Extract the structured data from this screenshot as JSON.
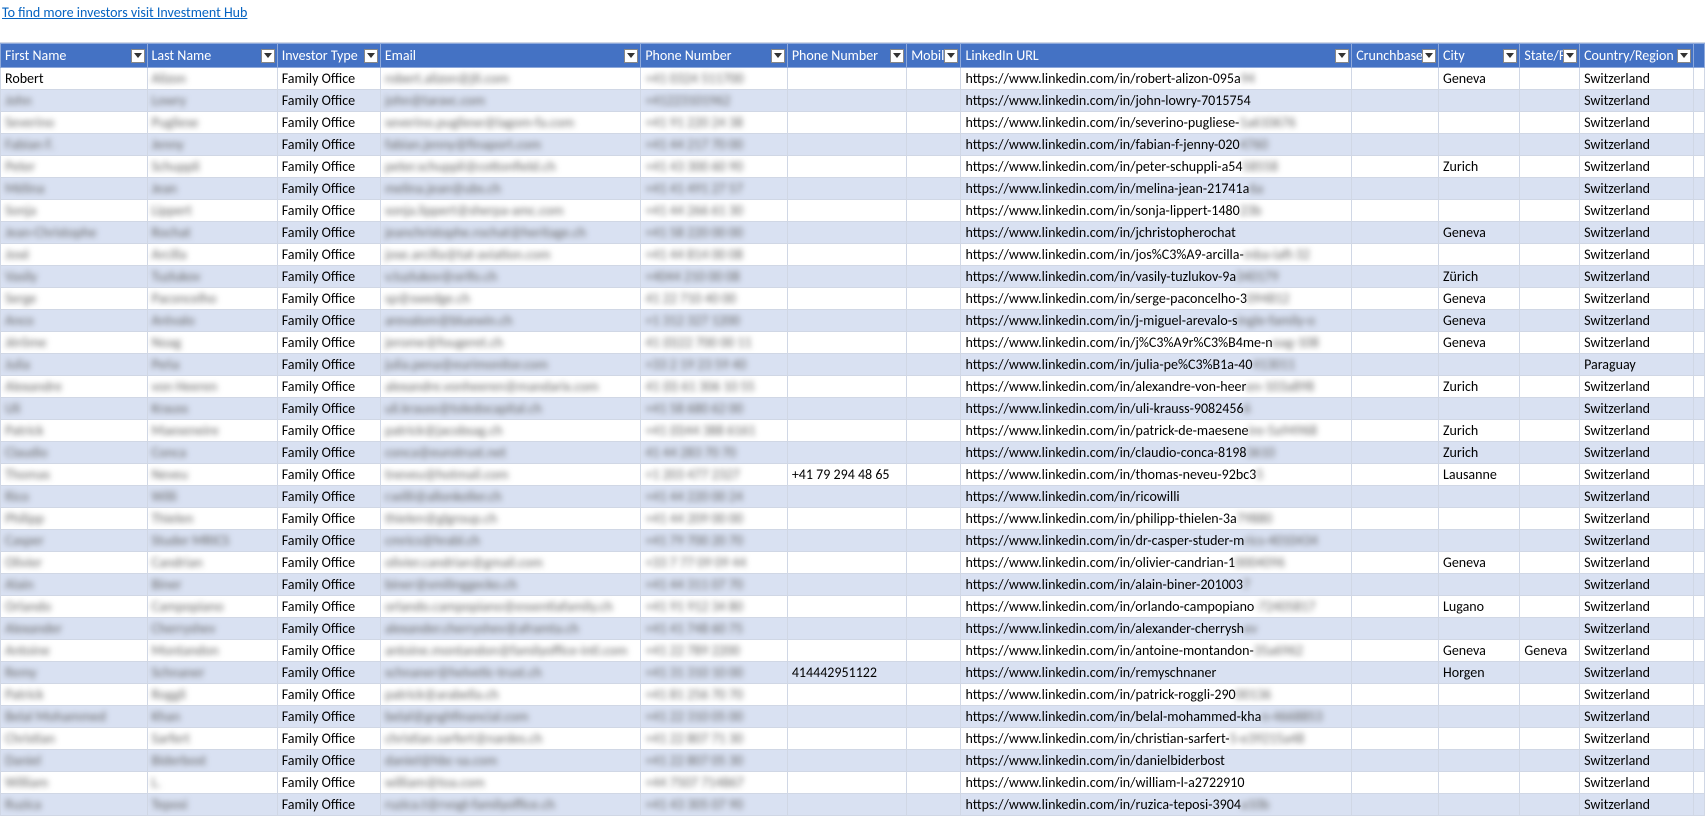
{
  "header_link": "To find more investors visit Investment Hub",
  "columns": [
    {
      "key": "first",
      "label": "First Name"
    },
    {
      "key": "last",
      "label": "Last Name"
    },
    {
      "key": "type",
      "label": "Investor Type"
    },
    {
      "key": "email",
      "label": "Email"
    },
    {
      "key": "phone1",
      "label": "Phone Number"
    },
    {
      "key": "phone2",
      "label": "Phone Number"
    },
    {
      "key": "mobile",
      "label": "Mobil"
    },
    {
      "key": "linkedin",
      "label": "LinkedIn URL"
    },
    {
      "key": "crunch",
      "label": "Crunchbase"
    },
    {
      "key": "city",
      "label": "City"
    },
    {
      "key": "state",
      "label": "State/F"
    },
    {
      "key": "country",
      "label": "Country/Region"
    }
  ],
  "colors": {
    "header_bg": "#4472c4",
    "header_fg": "#ffffff",
    "row_even": "#d9e1f2",
    "row_odd": "#ffffff",
    "grid": "#d0d7e5",
    "link": "#0563c1"
  },
  "rows": [
    {
      "first": "Robert",
      "last": "Alizon",
      "type": "Family Office",
      "email": "robert.alizon@jti.com",
      "phone1": "+41 0324 511700",
      "phone2": "",
      "mobile": "",
      "linkedin": "https://www.linkedin.com/in/robert-alizon-095a94",
      "crunch": "",
      "city": "Geneva",
      "state": "",
      "country": "Switzerland"
    },
    {
      "first": "John",
      "last": "Lowry",
      "type": "Family Office",
      "email": "john@taravc.com",
      "phone1": "+41223101962",
      "phone2": "",
      "mobile": "",
      "linkedin": "https://www.linkedin.com/in/john-lowry-7015754",
      "crunch": "",
      "city": "",
      "state": "",
      "country": "Switzerland"
    },
    {
      "first": "Severino",
      "last": "Pugliese",
      "type": "Family Office",
      "email": "severino.pugliese@lagom-fa.com",
      "phone1": "+41 91 220 24 38",
      "phone2": "",
      "mobile": "",
      "linkedin": "https://www.linkedin.com/in/severino-pugliese-1a610676",
      "crunch": "",
      "city": "",
      "state": "",
      "country": "Switzerland"
    },
    {
      "first": "Fabian F.",
      "last": "Jenny",
      "type": "Family Office",
      "email": "fabian.jenny@finaport.com",
      "phone1": "+41 44 217 70 00",
      "phone2": "",
      "mobile": "",
      "linkedin": "https://www.linkedin.com/in/fabian-f-jenny-0204760",
      "crunch": "",
      "city": "",
      "state": "",
      "country": "Switzerland"
    },
    {
      "first": "Peter",
      "last": "Schuppli",
      "type": "Family Office",
      "email": "peter.schuppli@cottonfield.ch",
      "phone1": "+41 43 300 60 90",
      "phone2": "",
      "mobile": "",
      "linkedin": "https://www.linkedin.com/in/peter-schuppli-a5458558",
      "crunch": "",
      "city": "Zurich",
      "state": "",
      "country": "Switzerland"
    },
    {
      "first": "Mélina",
      "last": "Jean",
      "type": "Family Office",
      "email": "melina.jean@ubs.ch",
      "phone1": "+41 41 491 27 57",
      "phone2": "",
      "mobile": "",
      "linkedin": "https://www.linkedin.com/in/melina-jean-21741a6a",
      "crunch": "",
      "city": "",
      "state": "",
      "country": "Switzerland"
    },
    {
      "first": "Sonja",
      "last": "Lippert",
      "type": "Family Office",
      "email": "sonja.lippert@sherpa-amc.com",
      "phone1": "+41 44 266 61 30",
      "phone2": "",
      "mobile": "",
      "linkedin": "https://www.linkedin.com/in/sonja-lippert-148023b",
      "crunch": "",
      "city": "",
      "state": "",
      "country": "Switzerland"
    },
    {
      "first": "Jean-Christophe",
      "last": "Rochat",
      "type": "Family Office",
      "email": "jeanchristophe.rochat@heritage.ch",
      "phone1": "+41 58 220 00 00",
      "phone2": "",
      "mobile": "",
      "linkedin": "https://www.linkedin.com/in/jchristopherochat",
      "crunch": "",
      "city": "Geneva",
      "state": "",
      "country": "Switzerland"
    },
    {
      "first": "José",
      "last": "Arcilla",
      "type": "Family Office",
      "email": "jose.arcilla@tat-aviation.com",
      "phone1": "+41 44 814 00 08",
      "phone2": "",
      "mobile": "",
      "linkedin": "https://www.linkedin.com/in/jos%C3%A9-arcilla-mba-iaft-32",
      "crunch": "",
      "city": "",
      "state": "",
      "country": "Switzerland"
    },
    {
      "first": "Vasily",
      "last": "Tuzlukov",
      "type": "Family Office",
      "email": "v.tuzlukov@orifo.ch",
      "phone1": "+4044 210 00 08",
      "phone2": "",
      "mobile": "",
      "linkedin": "https://www.linkedin.com/in/vasily-tuzlukov-9a340179",
      "crunch": "",
      "city": "Zürich",
      "state": "",
      "country": "Switzerland"
    },
    {
      "first": "Serge",
      "last": "Paconcelho",
      "type": "Family Office",
      "email": "sp@swedge.ch",
      "phone1": "41 22 710 40 00",
      "phone2": "",
      "mobile": "",
      "linkedin": "https://www.linkedin.com/in/serge-paconcelho-3094812",
      "crunch": "",
      "city": "Geneva",
      "state": "",
      "country": "Switzerland"
    },
    {
      "first": "Anco",
      "last": "Arévalo",
      "type": "Family Office",
      "email": "arevalom@bluewin.ch",
      "phone1": "+1 312 327 1200",
      "phone2": "",
      "mobile": "",
      "linkedin": "https://www.linkedin.com/in/j-miguel-arevalo-single-family-o",
      "crunch": "",
      "city": "Geneva",
      "state": "",
      "country": "Switzerland"
    },
    {
      "first": "Jérôme",
      "last": "Noag",
      "type": "Family Office",
      "email": "jerome@fougeret.ch",
      "phone1": "41 (0)22 700 00 11",
      "phone2": "",
      "mobile": "",
      "linkedin": "https://www.linkedin.com/in/j%C3%A9r%C3%B4me-noag-108",
      "crunch": "",
      "city": "Geneva",
      "state": "",
      "country": "Switzerland"
    },
    {
      "first": "Julia",
      "last": "Peña",
      "type": "Family Office",
      "email": "julia.pena@eurimonitor.com",
      "phone1": "+33 2 19 23 59 40",
      "phone2": "",
      "mobile": "",
      "linkedin": "https://www.linkedin.com/in/julia-pe%C3%B1a-40413011",
      "crunch": "",
      "city": "",
      "state": "",
      "country": "Paraguay"
    },
    {
      "first": "Alexandre",
      "last": "von Heeren",
      "type": "Family Office",
      "email": "alexandre.vonheeren@mandarix.com",
      "phone1": "41 (0) 61 306 10 55",
      "phone2": "",
      "mobile": "",
      "linkedin": "https://www.linkedin.com/in/alexandre-von-heeren-103a898",
      "crunch": "",
      "city": "Zurich",
      "state": "",
      "country": "Switzerland"
    },
    {
      "first": "Uli",
      "last": "Krauss",
      "type": "Family Office",
      "email": "uli.krauss@toledocapital.ch",
      "phone1": "+41 58 680 62 00",
      "phone2": "",
      "mobile": "",
      "linkedin": "https://www.linkedin.com/in/uli-krauss-90824566",
      "crunch": "",
      "city": "",
      "state": "",
      "country": "Switzerland"
    },
    {
      "first": "Patrick",
      "last": "Maeseneire",
      "type": "Family Office",
      "email": "patrick@jacobsag.ch",
      "phone1": "+41 (0)44 388 6161",
      "phone2": "",
      "mobile": "",
      "linkedin": "https://www.linkedin.com/in/patrick-de-maeseneire-5a94968",
      "crunch": "",
      "city": "Zurich",
      "state": "",
      "country": "Switzerland"
    },
    {
      "first": "Claudio",
      "last": "Conca",
      "type": "Family Office",
      "email": "conca@eurotrust.net",
      "phone1": "41 44 283 70 70",
      "phone2": "",
      "mobile": "",
      "linkedin": "https://www.linkedin.com/in/claudio-conca-81983610",
      "crunch": "",
      "city": "Zurich",
      "state": "",
      "country": "Switzerland"
    },
    {
      "first": "Thomas",
      "last": "Neveu",
      "type": "Family Office",
      "email": "tneveu@hotmail.com",
      "phone1": "+1 203 477 2327",
      "phone2": "+41 79 294 48 65",
      "mobile": "",
      "linkedin": "https://www.linkedin.com/in/thomas-neveu-92bc35",
      "crunch": "",
      "city": "Lausanne",
      "state": "",
      "country": "Switzerland"
    },
    {
      "first": "Rico",
      "last": "Willi",
      "type": "Family Office",
      "email": "r.willi@allonkoller.ch",
      "phone1": "+41 44 220 00 24",
      "phone2": "",
      "mobile": "",
      "linkedin": "https://www.linkedin.com/in/ricowilli",
      "crunch": "",
      "city": "",
      "state": "",
      "country": "Switzerland"
    },
    {
      "first": "Philipp",
      "last": "Thielen",
      "type": "Family Office",
      "email": "thielen@glgroup.ch",
      "phone1": "+41 44 209 00 00",
      "phone2": "",
      "mobile": "",
      "linkedin": "https://www.linkedin.com/in/philipp-thielen-3a79880",
      "crunch": "",
      "city": "",
      "state": "",
      "country": "Switzerland"
    },
    {
      "first": "Casper",
      "last": "Studer MRICS",
      "type": "Family Office",
      "email": "cmrics@hrabl.ch",
      "phone1": "+41 79 700 20 70",
      "phone2": "",
      "mobile": "",
      "linkedin": "https://www.linkedin.com/in/dr-casper-studer-mrics-4010434",
      "crunch": "",
      "city": "",
      "state": "",
      "country": "Switzerland"
    },
    {
      "first": "Olivier",
      "last": "Candrian",
      "type": "Family Office",
      "email": "olivier.candrian@gmail.com",
      "phone1": "+33 7 77 09 09 44",
      "phone2": "",
      "mobile": "",
      "linkedin": "https://www.linkedin.com/in/olivier-candrian-10004096",
      "crunch": "",
      "city": "Geneva",
      "state": "",
      "country": "Switzerland"
    },
    {
      "first": "Alain",
      "last": "Biner",
      "type": "Family Office",
      "email": "biner@smilinggecko.ch",
      "phone1": "+41 44 311 07 70",
      "phone2": "",
      "mobile": "",
      "linkedin": "https://www.linkedin.com/in/alain-biner-2010037",
      "crunch": "",
      "city": "",
      "state": "",
      "country": "Switzerland"
    },
    {
      "first": "Orlando",
      "last": "Campopiano",
      "type": "Family Office",
      "email": "orlando.campopiano@essentiafamily.ch",
      "phone1": "+41 91 912 34 80",
      "phone2": "",
      "mobile": "",
      "linkedin": "https://www.linkedin.com/in/orlando-campopiano-72405817",
      "crunch": "",
      "city": "Lugano",
      "state": "",
      "country": "Switzerland"
    },
    {
      "first": "Alexander",
      "last": "Cherryshev",
      "type": "Family Office",
      "email": "alexander.cherryshev@aframta.ch",
      "phone1": "+41 41 748 60 75",
      "phone2": "",
      "mobile": "",
      "linkedin": "https://www.linkedin.com/in/alexander-cherryshev",
      "crunch": "",
      "city": "",
      "state": "",
      "country": "Switzerland"
    },
    {
      "first": "Antoine",
      "last": "Montandon",
      "type": "Family Office",
      "email": "antoine.montandon@familyoffice-intl.com",
      "phone1": "+41 22 789 2200",
      "phone2": "",
      "mobile": "",
      "linkedin": "https://www.linkedin.com/in/antoine-montandon-35a6962",
      "crunch": "",
      "city": "Geneva",
      "state": "Geneva",
      "country": "Switzerland"
    },
    {
      "first": "Remy",
      "last": "Schnaner",
      "type": "Family Office",
      "email": "schnaner@helvetic-trust.ch",
      "phone1": "+41 31 310 10 00",
      "phone2": "414442951122",
      "mobile": "",
      "linkedin": "https://www.linkedin.com/in/remyschnaner",
      "crunch": "",
      "city": "Horgen",
      "state": "",
      "country": "Switzerland"
    },
    {
      "first": "Patrick",
      "last": "Roggli",
      "type": "Family Office",
      "email": "patrick@arabella.ch",
      "phone1": "+41 81 256 70 70",
      "phone2": "",
      "mobile": "",
      "linkedin": "https://www.linkedin.com/in/patrick-roggli-29000136",
      "crunch": "",
      "city": "",
      "state": "",
      "country": "Switzerland"
    },
    {
      "first": "Belal Mohammed",
      "last": "Khan",
      "type": "Family Office",
      "email": "belal@gnghfinancial.com",
      "phone1": "+41 22 310 05 00",
      "phone2": "",
      "mobile": "",
      "linkedin": "https://www.linkedin.com/in/belal-mohammed-khan-4668853",
      "crunch": "",
      "city": "",
      "state": "",
      "country": "Switzerland"
    },
    {
      "first": "Christian",
      "last": "Sarfert",
      "type": "Family Office",
      "email": "christian.sarfert@nardes.ch",
      "phone1": "+41 22 807 71 30",
      "phone2": "",
      "mobile": "",
      "linkedin": "https://www.linkedin.com/in/christian-sarfert-5-e39215a48",
      "crunch": "",
      "city": "",
      "state": "",
      "country": "Switzerland"
    },
    {
      "first": "Daniel",
      "last": "Biderbost",
      "type": "Family Office",
      "email": "daniel@hbc-sa.com",
      "phone1": "+41 22 807 05 30",
      "phone2": "",
      "mobile": "",
      "linkedin": "https://www.linkedin.com/in/danielbiderbost",
      "crunch": "",
      "city": "",
      "state": "",
      "country": "Switzerland"
    },
    {
      "first": "William",
      "last": "L.",
      "type": "Family Office",
      "email": "william@toa.com",
      "phone1": "+44 7507 714867",
      "phone2": "",
      "mobile": "",
      "linkedin": "https://www.linkedin.com/in/william-l-a2722910",
      "crunch": "",
      "city": "",
      "state": "",
      "country": "Switzerland"
    },
    {
      "first": "Ruzica",
      "last": "Teposi",
      "type": "Family Office",
      "email": "ruzica.t@rvogt-familyoffice.ch",
      "phone1": "+41 43 305 07 90",
      "phone2": "",
      "mobile": "",
      "linkedin": "https://www.linkedin.com/in/ruzica-teposi-3904a10b",
      "crunch": "",
      "city": "",
      "state": "",
      "country": "Switzerland"
    }
  ]
}
